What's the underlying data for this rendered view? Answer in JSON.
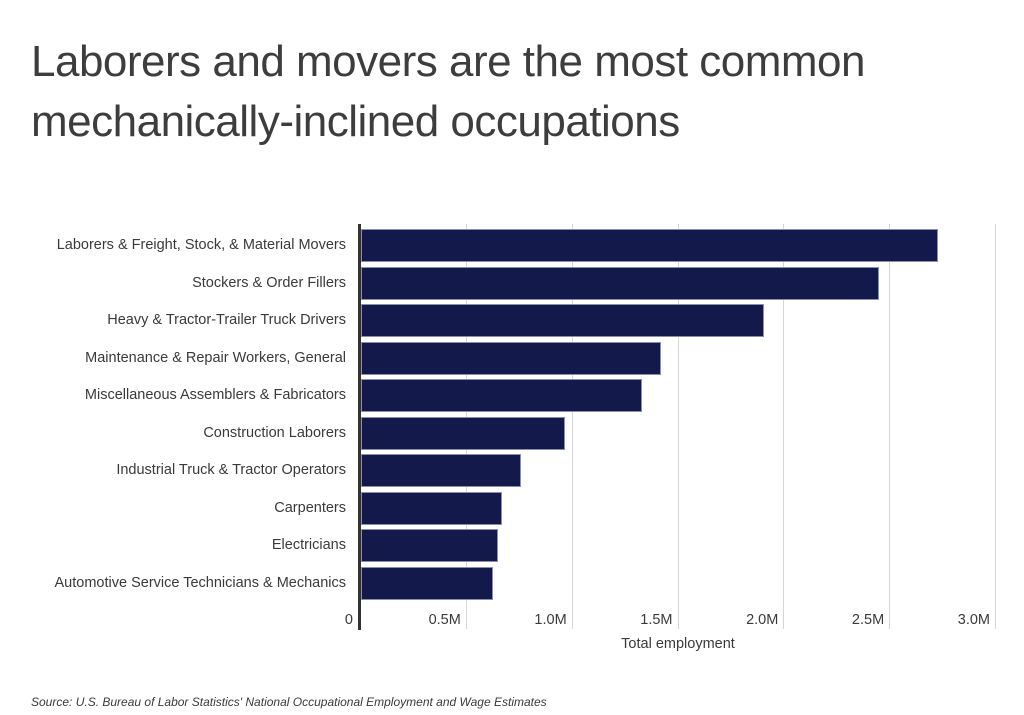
{
  "title": "Laborers and movers are the most common mechanically-inclined occupations",
  "source": "Source: U.S. Bureau of Labor Statistics' National Occupational Employment and Wage Estimates",
  "colors": {
    "bar": "#13194b",
    "grid": "#d6d6d6",
    "text": "#3a3a3a"
  },
  "chart_data": {
    "type": "bar",
    "orientation": "horizontal",
    "title": "Laborers and movers are the most common mechanically-inclined occupations",
    "xlabel": "Total employment",
    "ylabel": "",
    "xlim": [
      0,
      3000000
    ],
    "grid": true,
    "x_ticks": [
      "0",
      "0.5M",
      "1.0M",
      "1.5M",
      "2.0M",
      "2.5M",
      "3.0M"
    ],
    "categories": [
      "Laborers & Freight, Stock, & Material Movers",
      "Stockers & Order Fillers",
      "Heavy & Tractor-Trailer Truck Drivers",
      "Maintenance & Repair Workers, General",
      "Miscellaneous Assemblers & Fabricators",
      "Construction Laborers",
      "Industrial Truck & Tractor Operators",
      "Carpenters",
      "Electricians",
      "Automotive Service Technicians & Mechanics"
    ],
    "values": [
      2730000,
      2450000,
      1910000,
      1420000,
      1330000,
      970000,
      760000,
      670000,
      650000,
      630000
    ],
    "source": "Source: U.S. Bureau of Labor Statistics' National Occupational Employment and Wage Estimates"
  }
}
